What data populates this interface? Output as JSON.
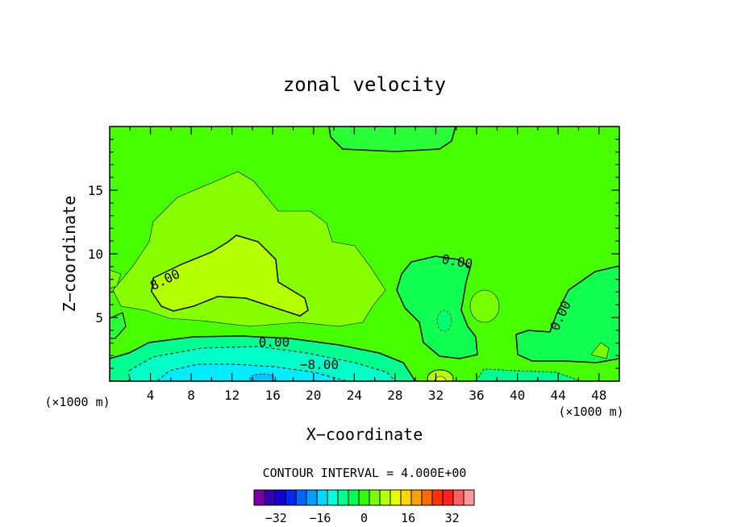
{
  "chart_data": {
    "type": "heatmap",
    "title": "zonal velocity",
    "xlabel": "X−coordinate",
    "ylabel": "Z−coordinate",
    "x_unit": "(×1000 m)",
    "y_unit": "(×1000 m)",
    "xlim": [
      0,
      50
    ],
    "ylim": [
      0,
      20
    ],
    "x_ticks": [
      "4",
      "8",
      "12",
      "16",
      "20",
      "24",
      "28",
      "32",
      "36",
      "40",
      "44",
      "48"
    ],
    "y_ticks": [
      "5",
      "10",
      "15"
    ],
    "contour_interval": "CONTOUR INTERVAL = 4.000E+00",
    "contour_labels": [
      "8.00",
      "0.00",
      "0.00",
      "−8.00",
      "0.00"
    ],
    "colorbar": {
      "tick_labels": [
        "−32",
        "−16",
        "0",
        "16",
        "32"
      ],
      "levels": [
        -40,
        40
      ],
      "colors": [
        "#7a00a6",
        "#3300b3",
        "#1500d6",
        "#0028f0",
        "#0066ff",
        "#00a0ff",
        "#00d8ff",
        "#00ffe0",
        "#00ff90",
        "#00ff55",
        "#2cff00",
        "#78ff00",
        "#b4ff00",
        "#e8ff00",
        "#ffd500",
        "#ffa000",
        "#ff6a00",
        "#ff3300",
        "#ff2020",
        "#ff6060",
        "#ff9999"
      ]
    },
    "regions": [
      {
        "value": 2,
        "label": "background"
      },
      {
        "value": 6,
        "label": "upper-left positive core"
      },
      {
        "value": 10,
        "label": "upper-left max core"
      },
      {
        "value": -2,
        "label": "top patch near x=26"
      },
      {
        "value": -2,
        "label": "negative region x=28-38"
      },
      {
        "value": -2,
        "label": "negative region x=40-50"
      },
      {
        "value": -14,
        "label": "near-surface negative jet"
      }
    ]
  }
}
